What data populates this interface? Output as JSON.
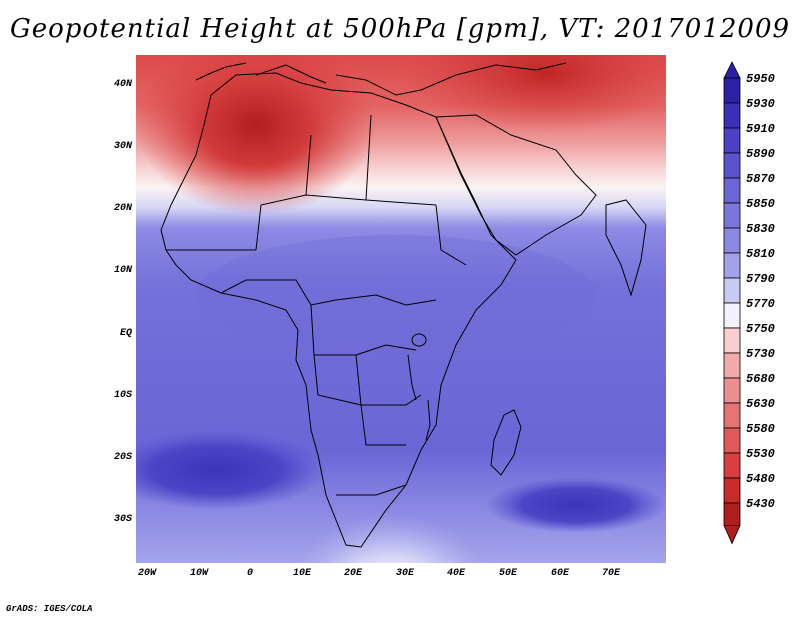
{
  "title": "Geopotential Height at 500hPa [gpm], VT: 2017012009",
  "credit": "GrADS: IGES/COLA",
  "lat_labels": [
    "40N",
    "30N",
    "20N",
    "10N",
    "EQ",
    "10S",
    "20S",
    "30S"
  ],
  "lon_labels": [
    "20W",
    "10W",
    "0",
    "10E",
    "20E",
    "30E",
    "40E",
    "50E",
    "60E",
    "70E"
  ],
  "legend": {
    "levels": [
      "5950",
      "5930",
      "5910",
      "5890",
      "5870",
      "5850",
      "5830",
      "5810",
      "5790",
      "5770",
      "5750",
      "5730",
      "5680",
      "5630",
      "5580",
      "5530",
      "5480",
      "5430"
    ],
    "colors": [
      "#2a21a6",
      "#3a31b8",
      "#4a41c6",
      "#5a53cf",
      "#6a66d6",
      "#7a78dd",
      "#8b8ae3",
      "#a2a3ea",
      "#c9caf4",
      "#f3f3fb",
      "#f7cfcf",
      "#f2a9a9",
      "#eb8f8f",
      "#e67474",
      "#e05858",
      "#d93f3f",
      "#c92a2a",
      "#b01e1e"
    ]
  }
}
